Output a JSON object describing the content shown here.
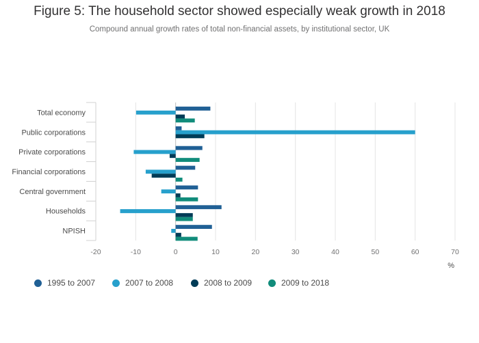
{
  "chart_data": {
    "type": "bar",
    "orientation": "horizontal",
    "title": "Figure 5: The household sector showed especially weak growth in 2018",
    "subtitle": "Compound annual growth rates of total non-financial assets, by institutional sector, UK",
    "xlabel": "%",
    "xlim": [
      -20,
      70
    ],
    "xticks": [
      -20,
      -10,
      0,
      10,
      20,
      30,
      40,
      50,
      60,
      70
    ],
    "grid": true,
    "legend_position": "bottom",
    "categories": [
      "Total economy",
      "Public corporations",
      "Private corporations",
      "Financial corporations",
      "Central government",
      "Households",
      "NPISH"
    ],
    "series": [
      {
        "name": "1995 to 2007",
        "color": "#206095",
        "values": [
          8.7,
          1.5,
          6.7,
          4.9,
          5.6,
          11.5,
          9.1
        ]
      },
      {
        "name": "2007 to 2008",
        "color": "#27a0cc",
        "values": [
          -9.9,
          60.0,
          -10.5,
          -7.5,
          -3.6,
          -13.9,
          -1.1
        ]
      },
      {
        "name": "2008 to 2009",
        "color": "#003c57",
        "values": [
          2.3,
          7.2,
          -1.5,
          -6.0,
          1.2,
          4.3,
          1.4
        ]
      },
      {
        "name": "2009 to 2018",
        "color": "#118c7b",
        "values": [
          4.8,
          0.0,
          6.0,
          1.7,
          5.6,
          4.3,
          5.5
        ]
      }
    ]
  }
}
